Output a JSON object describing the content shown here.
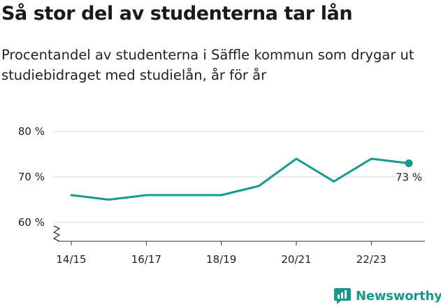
{
  "title": "Så stor del av studenterna tar lån",
  "subtitle": "Procentandel av studenterna i Säffle kommun som drygar ut studiebidraget med studielån, år för år",
  "brand": "Newsworthy",
  "colors": {
    "line": "#159a8c",
    "grid": "#d9d9d9",
    "axis": "#333333",
    "brand": "#15998c"
  },
  "chart_data": {
    "type": "line",
    "title": "Så stor del av studenterna tar lån",
    "subtitle": "Procentandel av studenterna i Säffle kommun som drygar ut studiebidraget med studielån, år för år",
    "x": [
      "14/15",
      "15/16",
      "16/17",
      "17/18",
      "18/19",
      "19/20",
      "20/21",
      "21/22",
      "22/23",
      "23/24"
    ],
    "series": [
      {
        "values": [
          66,
          65,
          66,
          66,
          66,
          68,
          74,
          69,
          74,
          73
        ]
      }
    ],
    "x_tick_labels": [
      "14/15",
      "16/17",
      "18/19",
      "20/21",
      "22/23"
    ],
    "y_ticks": [
      {
        "value": 60,
        "label": "60 %"
      },
      {
        "value": 70,
        "label": "70 %"
      },
      {
        "value": 80,
        "label": "80 %"
      }
    ],
    "ylim": [
      60,
      80
    ],
    "axis_break": true,
    "grid": true,
    "last_point_label": "73 %"
  }
}
